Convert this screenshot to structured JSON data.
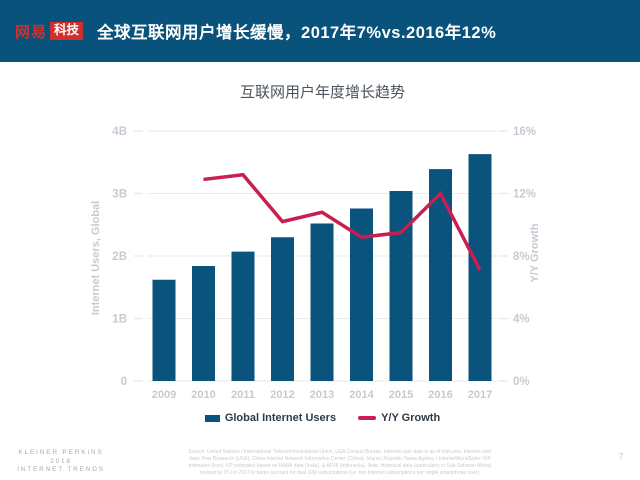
{
  "header": {
    "logo_netease": "网易",
    "logo_tech": "科技",
    "title": "全球互联网用户增长缓慢，2017年7%vs.2016年12%"
  },
  "chart_data": {
    "type": "bar",
    "title": "互联网用户年度增长趋势",
    "categories": [
      "2009",
      "2010",
      "2011",
      "2012",
      "2013",
      "2014",
      "2015",
      "2016",
      "2017"
    ],
    "series": [
      {
        "name": "Global Internet Users",
        "type": "bar",
        "axis": "left",
        "unit": "B",
        "values": [
          1.62,
          1.84,
          2.07,
          2.3,
          2.52,
          2.76,
          3.04,
          3.39,
          3.63
        ]
      },
      {
        "name": "Y/Y Growth",
        "type": "line",
        "axis": "right",
        "unit": "%",
        "values": [
          null,
          12.9,
          13.2,
          10.2,
          10.8,
          9.2,
          9.5,
          12.0,
          7.1
        ]
      }
    ],
    "left_axis": {
      "label": "Internet Users, Global",
      "range": [
        0,
        4
      ],
      "ticks": [
        "0",
        "1B",
        "2B",
        "3B",
        "4B"
      ]
    },
    "right_axis": {
      "label": "Y/Y Growth",
      "range": [
        0,
        16
      ],
      "ticks": [
        "0%",
        "4%",
        "8%",
        "12%",
        "16%"
      ]
    },
    "legend": [
      "Global Internet Users",
      "Y/Y Growth"
    ],
    "legend_position": "bottom",
    "grid": true
  },
  "footer": {
    "brand_line1": "KLEINER PERKINS",
    "brand_line2": "2018",
    "brand_line3": "INTERNET TRENDS",
    "source_lines": [
      "Source: United Nations / International Telecommunications Union, USA Census Bureau. Internet user data is as of mid-year. Internet user",
      "data: Pew Research (USA), China Internet Network Information Center (China), Islamic Republic News Agency / InternetWorldStats / KP",
      "estimates (Iran), KP estimates based on IAMAI data (India), & APJII (Indonesia). Note: Historical data (particularly in Sub-Saharan Africa)",
      "revised by ITU in 2017 to better account for dual-SIM subscriptions (i.e. two Internet subscriptions per single smartphone user)."
    ],
    "page_number": "7"
  },
  "colors": {
    "header_bg": "#08527C",
    "logo_red": "#CE312B",
    "bar": "#0A537D",
    "line": "#C91E4F",
    "grid": "#E8EAED",
    "axis_text": "#C6CBD2",
    "legend_text": "#2E3A46",
    "chart_title": "#4C545E",
    "footer_brand": "#A6AAAF",
    "footer_source": "#C9CBCD",
    "page_num": "#C3C4C6"
  }
}
